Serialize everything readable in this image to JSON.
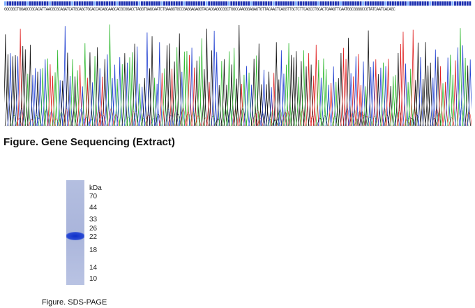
{
  "sequencing": {
    "caption": "Figure. Gene Sequencing (Extract)",
    "sequence": "GGCGGCTGGAGCCGCACATTAACGCGCAGATCATGCAGCTGCACCACAGCAAGCACGCGGACCTAGGTGAGCAATCTGAAGGTGCCGAGGAGAGGTACACGAGGCGGCTGGCCAAGGGAGAGTGTTACAACTCAGGTTGCTCTTCAGCCTGCACTGAAGTTCAATGGCGGGGCCGTATCAATCACAGC",
    "base_colors": {
      "A": "#2eb82e",
      "C": "#1f3fd1",
      "G": "#111111",
      "T": "#e02020"
    }
  },
  "sds_page": {
    "caption": "Figure. SDS-PAGE",
    "unit_label": "kDa",
    "markers": [
      "70",
      "44",
      "33",
      "26",
      "22",
      "18",
      "14",
      "10"
    ]
  }
}
